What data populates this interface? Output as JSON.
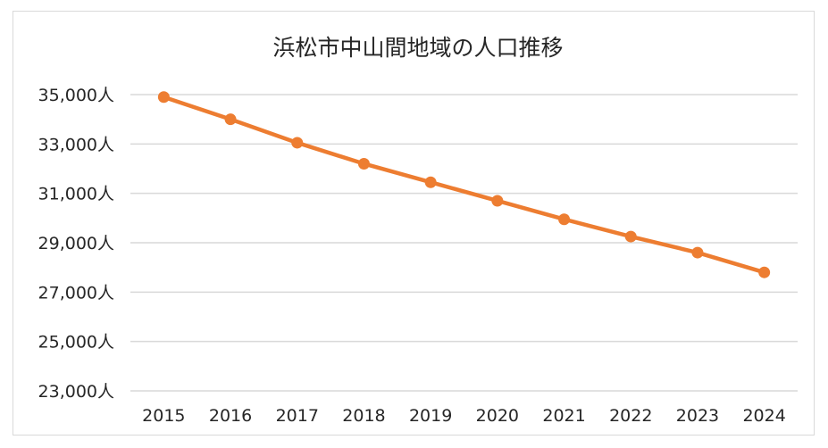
{
  "chart_data": {
    "type": "line",
    "title": "浜松市中山間地域の人口推移",
    "categories": [
      "2015",
      "2016",
      "2017",
      "2018",
      "2019",
      "2020",
      "2021",
      "2022",
      "2023",
      "2024"
    ],
    "series": [
      {
        "name": "人口",
        "values": [
          34900,
          34000,
          33050,
          32200,
          31450,
          30700,
          29950,
          29250,
          28600,
          27800
        ]
      }
    ],
    "y_ticks": [
      23000,
      25000,
      27000,
      29000,
      31000,
      33000,
      35000
    ],
    "y_tick_labels": [
      "23,000人",
      "25,000人",
      "27,000人",
      "29,000人",
      "31,000人",
      "33,000人",
      "35,000人"
    ],
    "ylim": [
      23000,
      35000
    ],
    "xlabel": "",
    "ylabel": "",
    "grid": true,
    "legend": "none",
    "line_color": "#ed7d31"
  }
}
